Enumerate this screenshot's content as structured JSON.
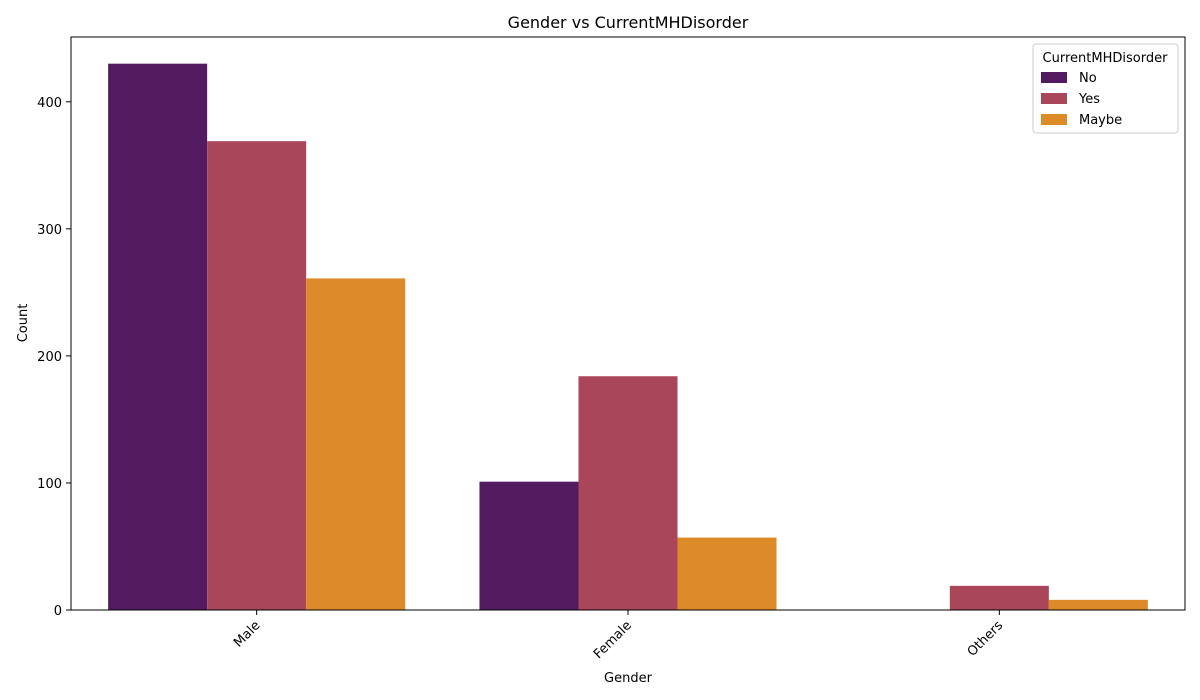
{
  "chart_data": {
    "type": "bar",
    "title": "Gender vs CurrentMHDisorder",
    "xlabel": "Gender",
    "ylabel": "Count",
    "categories": [
      "Male",
      "Female",
      "Others"
    ],
    "series": [
      {
        "name": "No",
        "color": "#521b5f",
        "values": [
          430,
          101,
          0
        ]
      },
      {
        "name": "Yes",
        "color": "#aa4659",
        "values": [
          369,
          184,
          19
        ]
      },
      {
        "name": "Maybe",
        "color": "#dd8b29",
        "values": [
          261,
          57,
          8
        ]
      }
    ],
    "yticks": [
      0,
      100,
      200,
      300,
      400
    ],
    "ylim": [
      0,
      451
    ],
    "legend": {
      "title": "CurrentMHDisorder",
      "position": "top-right"
    },
    "grid": false,
    "xtick_rotation": -45
  }
}
